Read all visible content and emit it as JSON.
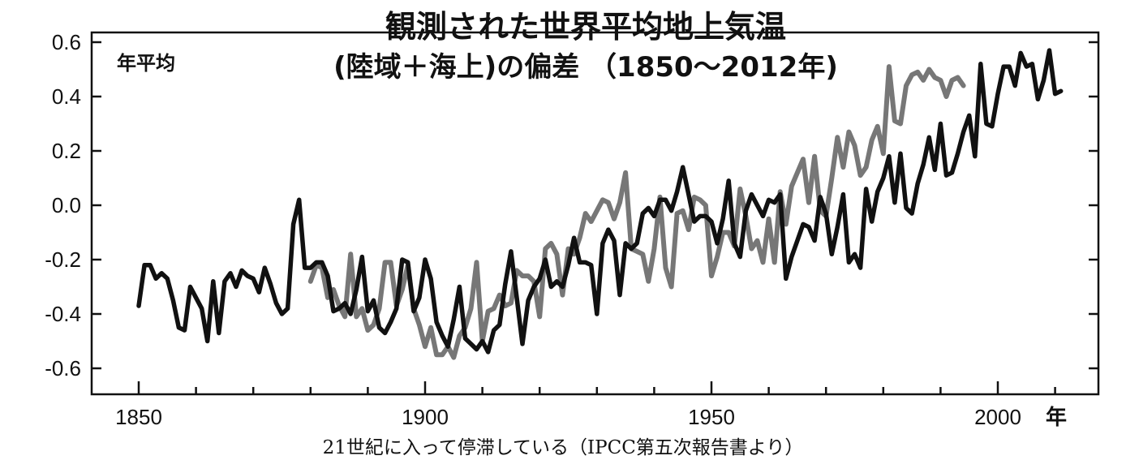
{
  "chart_data": {
    "type": "line",
    "title_line1": "観測された世界平均地上気温",
    "title_line2": "(陸域＋海上)の偏差 （1850～2012年)",
    "inset_label": "年平均",
    "x_unit_label": "年",
    "caption": "21世紀に入って停滞している（IPCC第五次報告書より）",
    "xlim": [
      1850,
      2016
    ],
    "ylim": [
      -0.7,
      0.63
    ],
    "x_ticks": [
      1850,
      1900,
      1950,
      2000
    ],
    "y_ticks": [
      -0.6,
      -0.4,
      -0.2,
      0.0,
      0.2,
      0.4,
      0.6
    ],
    "y_tick_labels": [
      "-0.6",
      "-0.4",
      "-0.2",
      "0.0",
      "0.2",
      "0.4",
      "0.6"
    ],
    "x_tick_labels": [
      "1850",
      "1900",
      "1950",
      "2000"
    ],
    "grid": false,
    "series": [
      {
        "color": "#777777",
        "x_start": 1880,
        "values": [
          -0.28,
          -0.22,
          -0.23,
          -0.34,
          -0.31,
          -0.37,
          -0.41,
          -0.18,
          -0.41,
          -0.38,
          -0.46,
          -0.44,
          -0.38,
          -0.21,
          -0.21,
          -0.37,
          -0.31,
          -0.22,
          -0.38,
          -0.44,
          -0.52,
          -0.45,
          -0.55,
          -0.55,
          -0.52,
          -0.56,
          -0.48,
          -0.45,
          -0.38,
          -0.21,
          -0.5,
          -0.39,
          -0.38,
          -0.33,
          -0.37,
          -0.36,
          -0.24,
          -0.26,
          -0.26,
          -0.28,
          -0.41,
          -0.16,
          -0.14,
          -0.18,
          -0.33,
          -0.16,
          -0.18,
          -0.12,
          -0.03,
          -0.06,
          -0.02,
          0.02,
          0.01,
          -0.05,
          0.01,
          0.12,
          -0.16,
          -0.17,
          -0.18,
          -0.28,
          -0.16,
          0.03,
          -0.23,
          -0.3,
          -0.03,
          -0.02,
          -0.09,
          0.03,
          0.02,
          0.0,
          -0.26,
          -0.19,
          -0.1,
          -0.1,
          -0.15,
          0.06,
          -0.04,
          -0.16,
          -0.13,
          -0.21,
          -0.05,
          -0.21,
          0.05,
          -0.07,
          0.07,
          0.12,
          0.17,
          0.01,
          0.18,
          -0.02,
          -0.04,
          0.1,
          0.25,
          0.14,
          0.27,
          0.22,
          0.11,
          0.14,
          0.24,
          0.29,
          0.19,
          0.51,
          0.31,
          0.3,
          0.44,
          0.48,
          0.49,
          0.46,
          0.5,
          0.47,
          0.46,
          0.4,
          0.46,
          0.47,
          0.44
        ]
      },
      {
        "color": "#111111",
        "x_start": 1850,
        "values": [
          -0.37,
          -0.22,
          -0.22,
          -0.27,
          -0.25,
          -0.27,
          -0.35,
          -0.45,
          -0.46,
          -0.3,
          -0.34,
          -0.38,
          -0.5,
          -0.28,
          -0.47,
          -0.28,
          -0.25,
          -0.3,
          -0.24,
          -0.26,
          -0.27,
          -0.32,
          -0.23,
          -0.29,
          -0.36,
          -0.4,
          -0.38,
          -0.07,
          0.02,
          -0.23,
          -0.23,
          -0.21,
          -0.21,
          -0.26,
          -0.39,
          -0.38,
          -0.36,
          -0.4,
          -0.31,
          -0.19,
          -0.39,
          -0.35,
          -0.45,
          -0.47,
          -0.43,
          -0.38,
          -0.2,
          -0.21,
          -0.39,
          -0.34,
          -0.2,
          -0.27,
          -0.43,
          -0.48,
          -0.52,
          -0.42,
          -0.3,
          -0.49,
          -0.51,
          -0.53,
          -0.5,
          -0.54,
          -0.46,
          -0.44,
          -0.29,
          -0.17,
          -0.34,
          -0.51,
          -0.35,
          -0.3,
          -0.27,
          -0.2,
          -0.3,
          -0.28,
          -0.3,
          -0.22,
          -0.12,
          -0.21,
          -0.21,
          -0.22,
          -0.4,
          -0.14,
          -0.09,
          -0.13,
          -0.33,
          -0.14,
          -0.16,
          -0.14,
          -0.03,
          -0.01,
          -0.04,
          0.02,
          0.02,
          -0.02,
          0.05,
          0.14,
          0.04,
          -0.06,
          -0.04,
          -0.04,
          -0.06,
          -0.14,
          -0.05,
          0.09,
          -0.14,
          -0.19,
          -0.02,
          0.04,
          0.0,
          -0.04,
          0.02,
          0.01,
          0.04,
          -0.27,
          -0.19,
          -0.13,
          -0.07,
          -0.08,
          -0.13,
          0.03,
          -0.03,
          -0.18,
          -0.08,
          0.04,
          -0.21,
          -0.18,
          -0.23,
          0.06,
          -0.06,
          0.05,
          0.1,
          0.18,
          0.01,
          0.19,
          -0.01,
          -0.03,
          0.08,
          0.15,
          0.25,
          0.13,
          0.3,
          0.11,
          0.12,
          0.19,
          0.27,
          0.33,
          0.18,
          0.52,
          0.3,
          0.29,
          0.41,
          0.51,
          0.51,
          0.44,
          0.56,
          0.51,
          0.52,
          0.39,
          0.46,
          0.57,
          0.41,
          0.42
        ]
      }
    ]
  }
}
